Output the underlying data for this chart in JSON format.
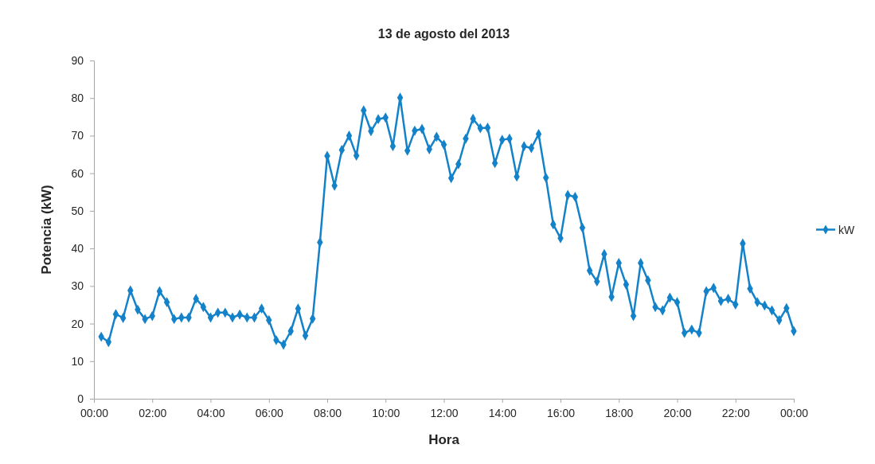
{
  "chart_data": {
    "type": "line",
    "title": "13 de agosto del 2013",
    "xlabel": "Hora",
    "ylabel": "Potencia (kW)",
    "x": [
      0.25,
      0.5,
      0.75,
      1,
      1.25,
      1.5,
      1.75,
      2,
      2.25,
      2.5,
      2.75,
      3,
      3.25,
      3.5,
      3.75,
      4,
      4.25,
      4.5,
      4.75,
      5,
      5.25,
      5.5,
      5.75,
      6,
      6.25,
      6.5,
      6.75,
      7,
      7.25,
      7.5,
      7.75,
      8,
      8.25,
      8.5,
      8.75,
      9,
      9.25,
      9.5,
      9.75,
      10,
      10.25,
      10.5,
      10.75,
      11,
      11.25,
      11.5,
      11.75,
      12,
      12.25,
      12.5,
      12.75,
      13,
      13.25,
      13.5,
      13.75,
      14,
      14.25,
      14.5,
      14.75,
      15,
      15.25,
      15.5,
      15.75,
      16,
      16.25,
      16.5,
      16.75,
      17,
      17.25,
      17.5,
      17.75,
      18,
      18.25,
      18.5,
      18.75,
      19,
      19.25,
      19.5,
      19.75,
      20,
      20.25,
      20.5,
      20.75,
      21,
      21.25,
      21.5,
      21.75,
      22,
      22.25,
      22.5,
      22.75,
      23,
      23.25,
      23.5,
      23.75,
      24
    ],
    "series": [
      {
        "name": "kW",
        "color": "#1382c9",
        "values": [
          16.5,
          15.1,
          22.5,
          21.5,
          28.8,
          23.7,
          21.2,
          22.0,
          28.6,
          25.7,
          21.2,
          21.6,
          21.6,
          26.6,
          24.4,
          21.6,
          22.9,
          22.9,
          21.6,
          22.4,
          21.6,
          21.6,
          24.0,
          20.9,
          15.6,
          14.4,
          18.0,
          24.0,
          16.8,
          21.3,
          41.6,
          64.6,
          56.7,
          66.2,
          70.0,
          64.7,
          76.7,
          71.2,
          74.4,
          74.8,
          67.2,
          80.1,
          66.0,
          71.3,
          71.8,
          66.4,
          69.7,
          67.6,
          58.7,
          62.4,
          69.2,
          74.5,
          72.0,
          72.1,
          62.7,
          68.9,
          69.2,
          59.1,
          67.2,
          66.7,
          70.4,
          58.8,
          46.4,
          42.7,
          54.2,
          53.7,
          45.5,
          34.1,
          31.2,
          38.5,
          27.1,
          36.1,
          30.4,
          22.0,
          36.1,
          31.5,
          24.4,
          23.5,
          26.9,
          25.7,
          17.5,
          18.4,
          17.5,
          28.6,
          29.5,
          26.0,
          26.6,
          25.1,
          41.3,
          29.3,
          25.7,
          24.8,
          23.5,
          20.9,
          24.1,
          18.0
        ]
      }
    ],
    "xlim": [
      0,
      24
    ],
    "xticks": [
      {
        "value": 0,
        "label": "00:00"
      },
      {
        "value": 2,
        "label": "02:00"
      },
      {
        "value": 4,
        "label": "04:00"
      },
      {
        "value": 6,
        "label": "06:00"
      },
      {
        "value": 8,
        "label": "08:00"
      },
      {
        "value": 10,
        "label": "10:00"
      },
      {
        "value": 12,
        "label": "12:00"
      },
      {
        "value": 14,
        "label": "14:00"
      },
      {
        "value": 16,
        "label": "16:00"
      },
      {
        "value": 18,
        "label": "18:00"
      },
      {
        "value": 20,
        "label": "20:00"
      },
      {
        "value": 22,
        "label": "22:00"
      },
      {
        "value": 24,
        "label": "00:00"
      }
    ],
    "ylim": [
      0,
      90
    ],
    "yticks": [
      0,
      10,
      20,
      30,
      40,
      50,
      60,
      70,
      80,
      90
    ],
    "legend": "right",
    "marker": "diamond",
    "line_style": "solid"
  }
}
